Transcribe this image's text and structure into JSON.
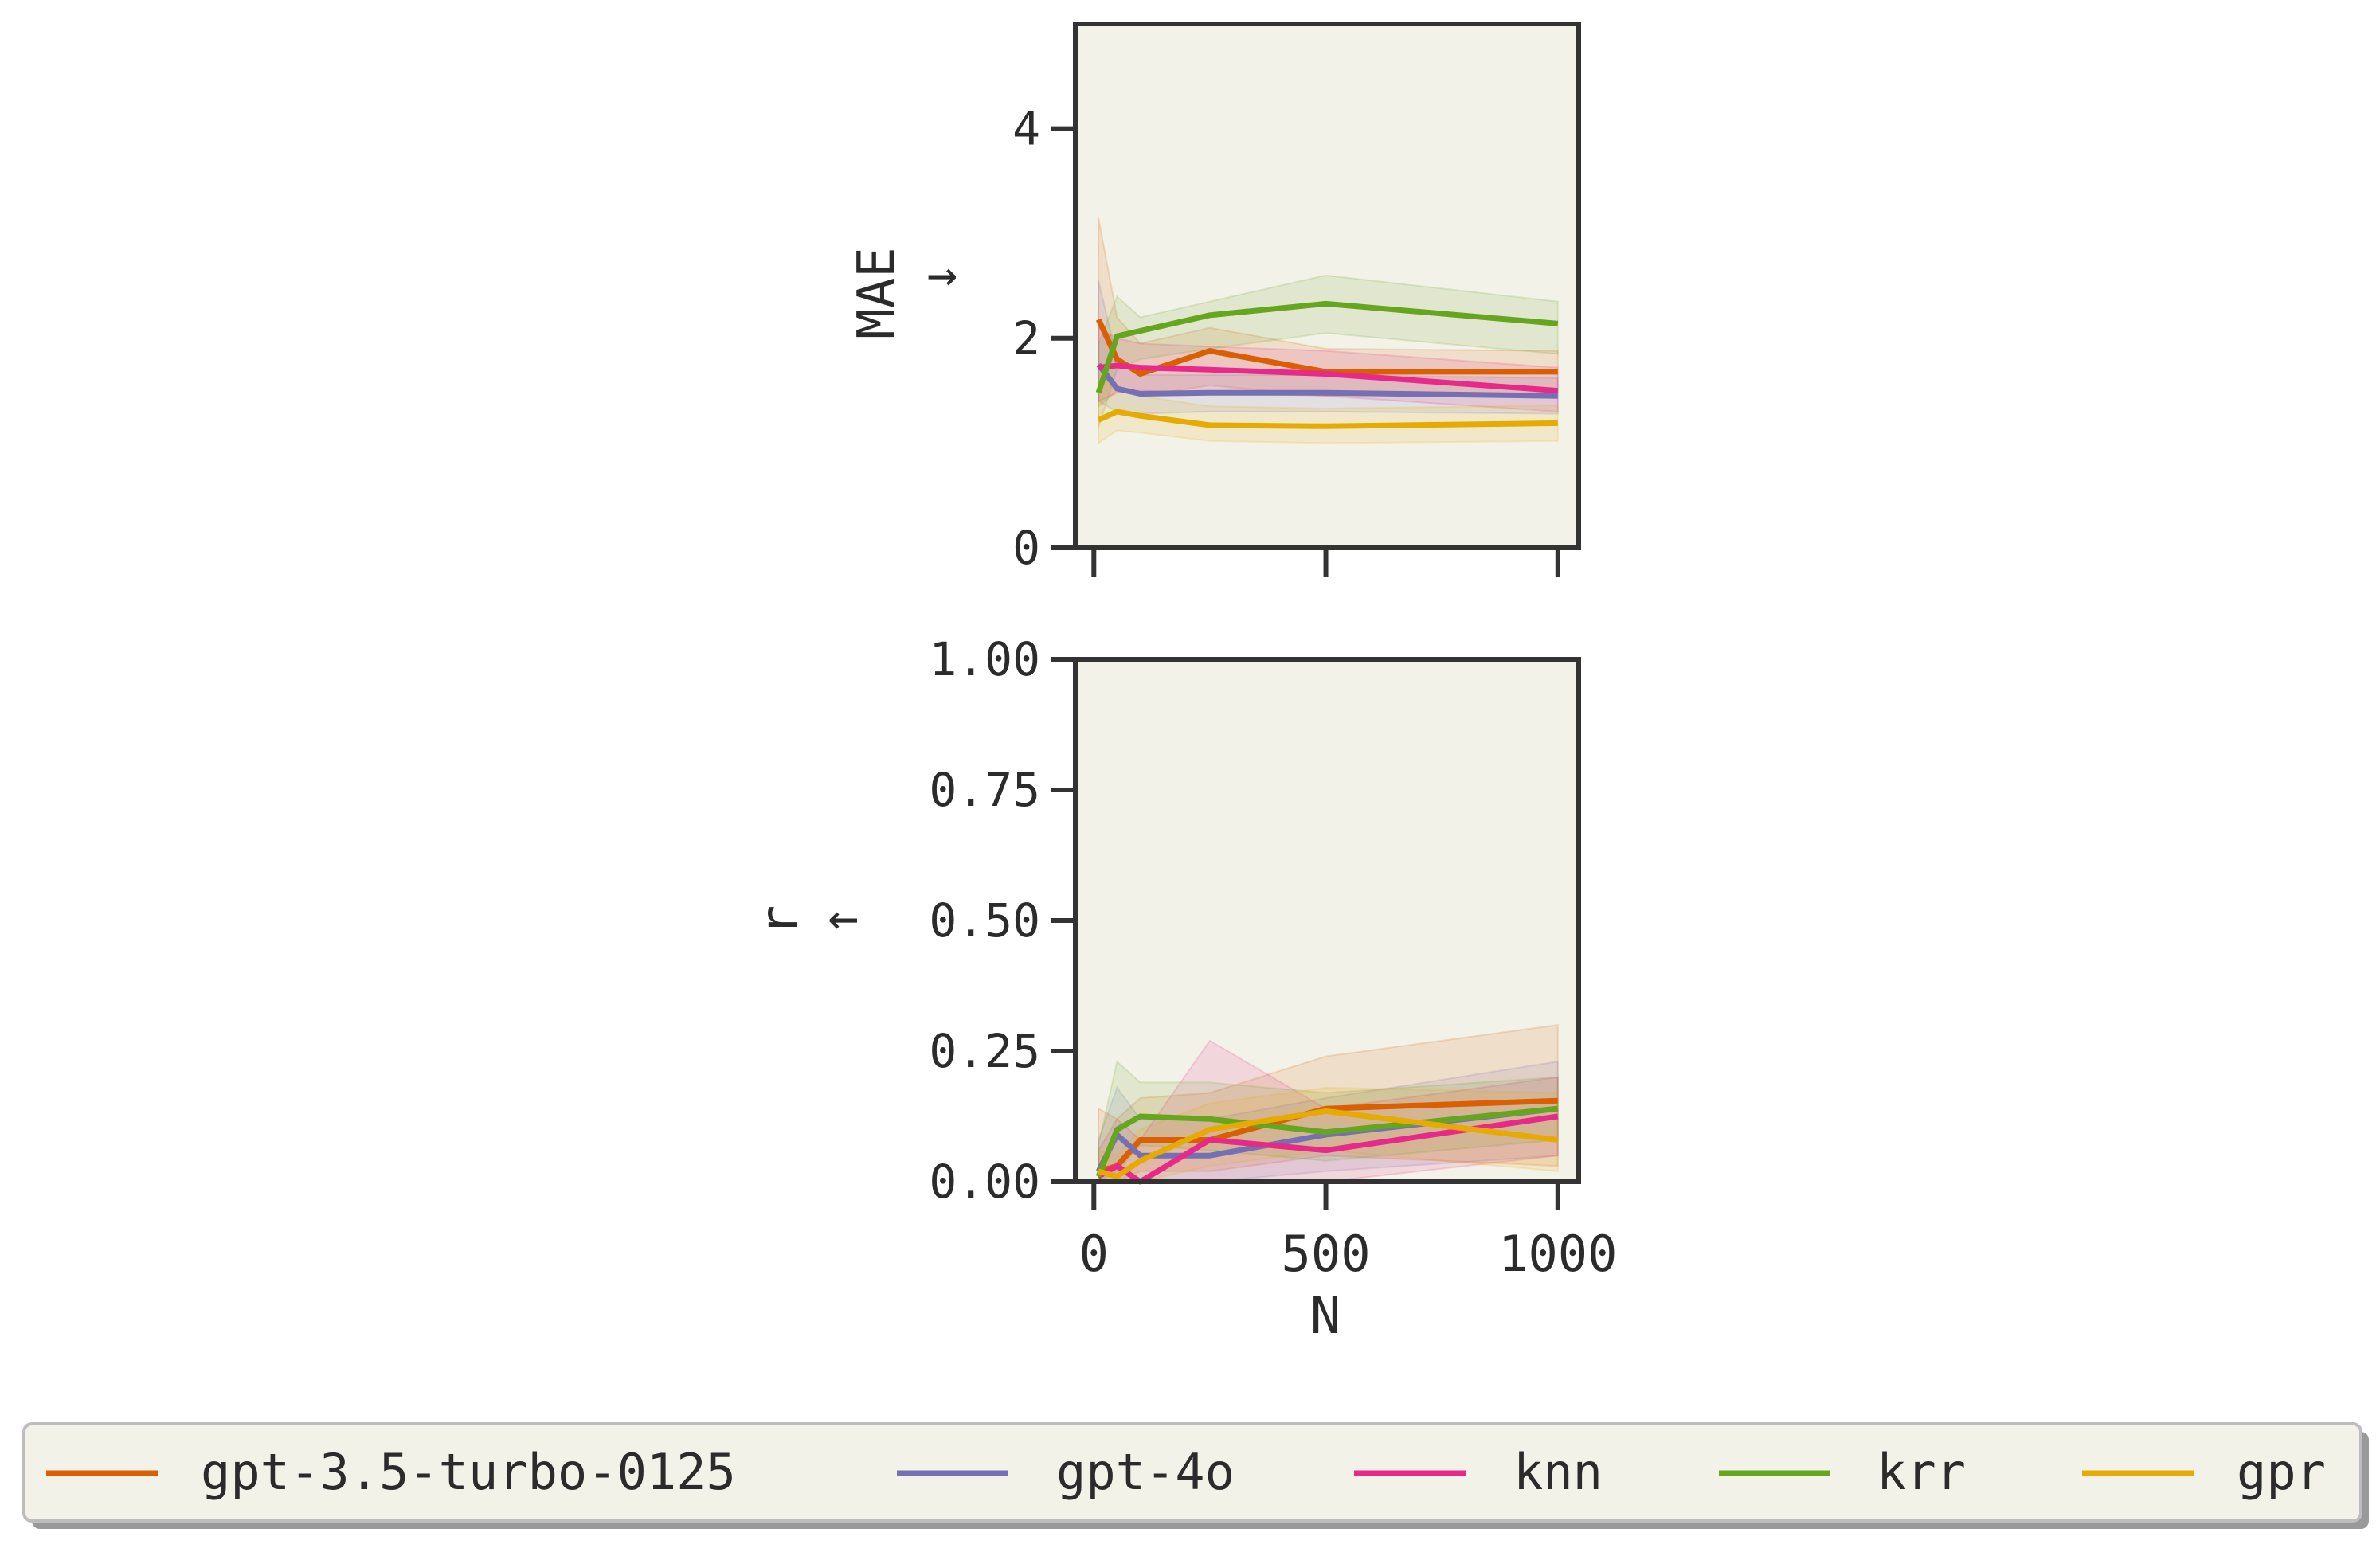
{
  "chart_data": [
    {
      "type": "line",
      "panel": "top",
      "ylabel": "MAE",
      "ylabel_arrow": "↓",
      "xlabel": "",
      "ylim": [
        0,
        5
      ],
      "xlim": [
        -40,
        1045
      ],
      "yticks": [
        0,
        2,
        4
      ],
      "ytick_labels": [
        "0",
        "2",
        "4"
      ],
      "xticks": [
        0,
        500,
        1000
      ],
      "xtick_labels": [
        "",
        "",
        ""
      ],
      "grid": false,
      "x": [
        10,
        50,
        100,
        250,
        500,
        1000
      ],
      "series": [
        {
          "name": "gpt-3.5-turbo-0125",
          "color": "#d95f02",
          "values": [
            2.18,
            1.8,
            1.66,
            1.88,
            1.68,
            1.68
          ],
          "lower": [
            1.35,
            1.5,
            1.45,
            1.55,
            1.45,
            1.48
          ],
          "upper": [
            3.15,
            2.2,
            1.95,
            2.1,
            1.9,
            1.88
          ]
        },
        {
          "name": "gpt-4o",
          "color": "#7570b3",
          "values": [
            1.75,
            1.52,
            1.47,
            1.48,
            1.48,
            1.45
          ],
          "lower": [
            1.4,
            1.3,
            1.28,
            1.3,
            1.3,
            1.28
          ],
          "upper": [
            2.55,
            1.8,
            1.65,
            1.65,
            1.65,
            1.62
          ]
        },
        {
          "name": "knn",
          "color": "#e7298a",
          "values": [
            1.72,
            1.74,
            1.72,
            1.7,
            1.66,
            1.5
          ],
          "lower": [
            1.4,
            1.48,
            1.5,
            1.48,
            1.45,
            1.3
          ],
          "upper": [
            2.1,
            2.0,
            1.95,
            1.92,
            1.88,
            1.72
          ]
        },
        {
          "name": "krr",
          "color": "#66a61e",
          "values": [
            1.48,
            2.02,
            2.07,
            2.22,
            2.33,
            2.14
          ],
          "lower": [
            1.15,
            1.7,
            1.8,
            1.9,
            2.05,
            1.85
          ],
          "upper": [
            1.95,
            2.4,
            2.2,
            2.35,
            2.6,
            2.35
          ]
        },
        {
          "name": "gpr",
          "color": "#e6ab02",
          "values": [
            1.22,
            1.3,
            1.26,
            1.17,
            1.16,
            1.19
          ],
          "lower": [
            1.0,
            1.12,
            1.1,
            1.02,
            1.0,
            1.02
          ],
          "upper": [
            1.6,
            1.55,
            1.45,
            1.35,
            1.33,
            1.36
          ]
        }
      ]
    },
    {
      "type": "line",
      "panel": "bottom",
      "ylabel": "r",
      "ylabel_arrow": "↑",
      "xlabel": "N",
      "ylim": [
        0,
        1
      ],
      "xlim": [
        -40,
        1045
      ],
      "yticks": [
        0,
        0.25,
        0.5,
        0.75,
        1.0
      ],
      "ytick_labels": [
        "0.00",
        "0.25",
        "0.50",
        "0.75",
        "1.00"
      ],
      "xticks": [
        0,
        500,
        1000
      ],
      "xtick_labels": [
        "0",
        "500",
        "1000"
      ],
      "grid": false,
      "x": [
        10,
        50,
        100,
        250,
        500,
        1000
      ],
      "series": [
        {
          "name": "gpt-3.5-turbo-0125",
          "color": "#d95f02",
          "values": [
            0.02,
            0.03,
            0.08,
            0.08,
            0.14,
            0.155
          ],
          "lower": [
            0.0,
            0.0,
            0.02,
            0.02,
            0.05,
            0.03
          ],
          "upper": [
            0.14,
            0.12,
            0.16,
            0.17,
            0.24,
            0.3
          ]
        },
        {
          "name": "gpt-4o",
          "color": "#7570b3",
          "values": [
            0.02,
            0.09,
            0.05,
            0.05,
            0.09,
            0.14
          ],
          "lower": [
            0.0,
            0.0,
            0.0,
            0.0,
            0.02,
            0.05
          ],
          "upper": [
            0.08,
            0.18,
            0.12,
            0.12,
            0.16,
            0.23
          ]
        },
        {
          "name": "knn",
          "color": "#e7298a",
          "values": [
            0.01,
            0.03,
            0.0,
            0.08,
            0.06,
            0.125
          ],
          "lower": [
            0.0,
            0.0,
            0.0,
            0.0,
            0.0,
            0.05
          ],
          "upper": [
            0.06,
            0.12,
            0.08,
            0.27,
            0.14,
            0.2
          ]
        },
        {
          "name": "krr",
          "color": "#66a61e",
          "values": [
            0.01,
            0.1,
            0.125,
            0.12,
            0.095,
            0.14
          ],
          "lower": [
            0.0,
            0.02,
            0.07,
            0.06,
            0.04,
            0.08
          ],
          "upper": [
            0.07,
            0.23,
            0.19,
            0.19,
            0.17,
            0.2
          ]
        },
        {
          "name": "gpr",
          "color": "#e6ab02",
          "values": [
            0.02,
            0.01,
            0.04,
            0.1,
            0.135,
            0.08
          ],
          "lower": [
            0.0,
            0.0,
            0.0,
            0.03,
            0.06,
            0.02
          ],
          "upper": [
            0.06,
            0.05,
            0.1,
            0.15,
            0.18,
            0.17
          ]
        }
      ]
    }
  ],
  "legend": {
    "placement": "bottom",
    "items": [
      {
        "label": "gpt-3.5-turbo-0125",
        "color": "#d95f02"
      },
      {
        "label": "gpt-4o",
        "color": "#7570b3"
      },
      {
        "label": "knn",
        "color": "#e7298a"
      },
      {
        "label": "krr",
        "color": "#66a61e"
      },
      {
        "label": "gpr",
        "color": "#e6ab02"
      }
    ]
  },
  "colors": {
    "panel_background": "#f3f2e8",
    "axis": "#333333",
    "text": "#2b2b2b"
  }
}
